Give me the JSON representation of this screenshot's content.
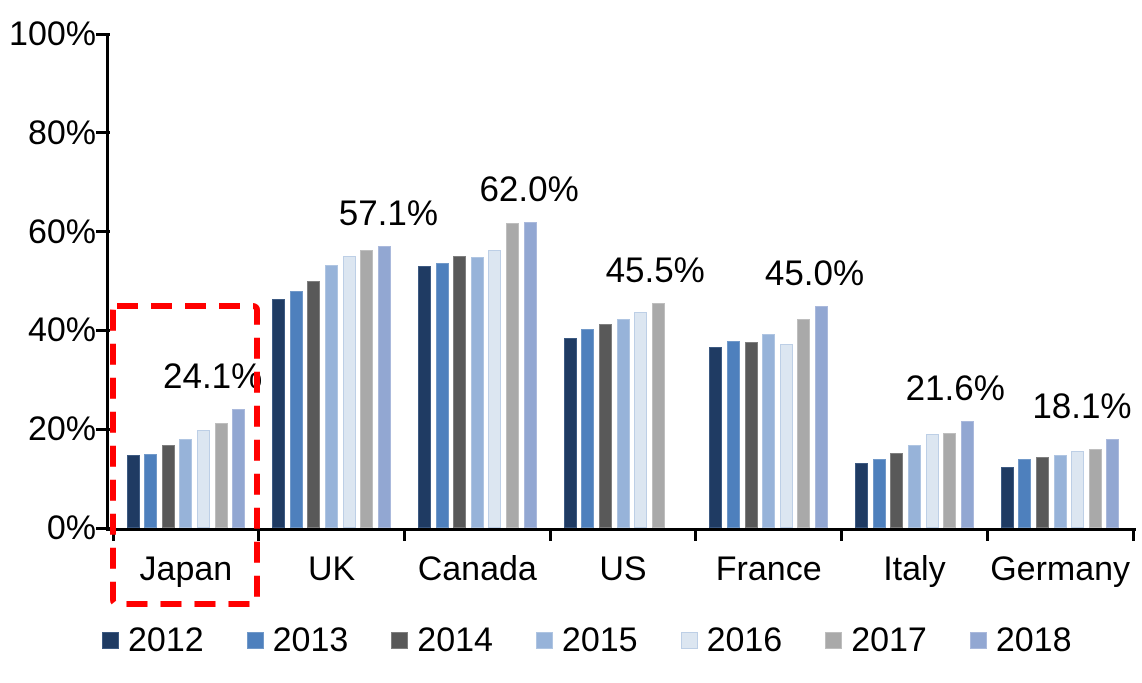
{
  "chart_data": {
    "type": "bar",
    "title": "",
    "xlabel": "",
    "ylabel": "",
    "categories": [
      "Japan",
      "UK",
      "Canada",
      "US",
      "France",
      "Italy",
      "Germany"
    ],
    "series": [
      {
        "name": "2012",
        "color": "#1F3B63",
        "values": [
          14.8,
          46.4,
          53.0,
          38.4,
          36.6,
          13.1,
          12.4
        ]
      },
      {
        "name": "2013",
        "color": "#4E80BD",
        "values": [
          15.0,
          48.0,
          53.6,
          40.3,
          37.8,
          14.0,
          13.9
        ]
      },
      {
        "name": "2014",
        "color": "#595959",
        "values": [
          16.8,
          50.1,
          55.0,
          41.2,
          37.7,
          15.2,
          14.4
        ]
      },
      {
        "name": "2015",
        "color": "#97B3D9",
        "values": [
          18.1,
          53.3,
          54.8,
          42.3,
          39.3,
          16.9,
          14.8
        ]
      },
      {
        "name": "2016",
        "color": "#DCE6F1",
        "values": [
          19.9,
          55.1,
          56.3,
          43.7,
          37.3,
          19.0,
          15.5
        ]
      },
      {
        "name": "2017",
        "color": "#A9A9A9",
        "values": [
          21.2,
          56.2,
          61.8,
          45.5,
          42.4,
          19.2,
          15.9
        ]
      },
      {
        "name": "2018",
        "color": "#92A7D2",
        "values": [
          24.1,
          57.1,
          62.0,
          null,
          45.0,
          21.6,
          18.1
        ]
      }
    ],
    "data_labels": [
      {
        "category": "Japan",
        "text": "24.1%",
        "value": 24.1
      },
      {
        "category": "UK",
        "text": "57.1%",
        "value": 57.1
      },
      {
        "category": "Canada",
        "text": "62.0%",
        "value": 62.0
      },
      {
        "category": "US",
        "text": "45.5%",
        "value": 45.5
      },
      {
        "category": "France",
        "text": "45.0%",
        "value": 45.0
      },
      {
        "category": "Italy",
        "text": "21.6%",
        "value": 21.6
      },
      {
        "category": "Germany",
        "text": "18.1%",
        "value": 18.1
      }
    ],
    "ylim": [
      0,
      100
    ],
    "yticks": [
      {
        "value": 0,
        "label": "0%"
      },
      {
        "value": 20,
        "label": "20%"
      },
      {
        "value": 40,
        "label": "40%"
      },
      {
        "value": 60,
        "label": "60%"
      },
      {
        "value": 80,
        "label": "80%"
      },
      {
        "value": 100,
        "label": "100%"
      }
    ],
    "grid": false,
    "legend_position": "bottom",
    "legend_entries": [
      "2012",
      "2013",
      "2014",
      "2015",
      "2016",
      "2017",
      "2018"
    ],
    "highlight": {
      "category": "Japan",
      "shape": "dashed-rectangle",
      "color": "#FF0000"
    }
  }
}
